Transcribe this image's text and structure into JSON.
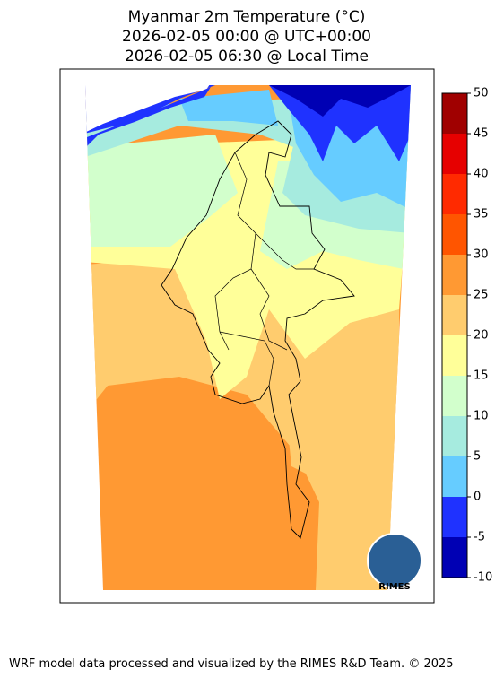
{
  "title": [
    "Myanmar 2m Temperature (°C)",
    "2026-02-05 00:00 @ UTC+00:00",
    "2026-02-05 06:30 @ Local Time"
  ],
  "colorbar": {
    "lim": [
      -10,
      50
    ],
    "ticks": [
      -10,
      -5,
      0,
      5,
      10,
      15,
      20,
      25,
      30,
      35,
      40,
      45,
      50
    ],
    "colors": [
      "#0000b4",
      "#1f32ff",
      "#66ccff",
      "#a6ebdf",
      "#d2ffcc",
      "#ffff99",
      "#ffcc6e",
      "#ff9933",
      "#ff5500",
      "#ff2a00",
      "#e60000",
      "#a00000"
    ]
  },
  "logo": "RIMES",
  "footer": "WRF model data processed and visualized by the RIMES R&D Team. © 2025"
}
